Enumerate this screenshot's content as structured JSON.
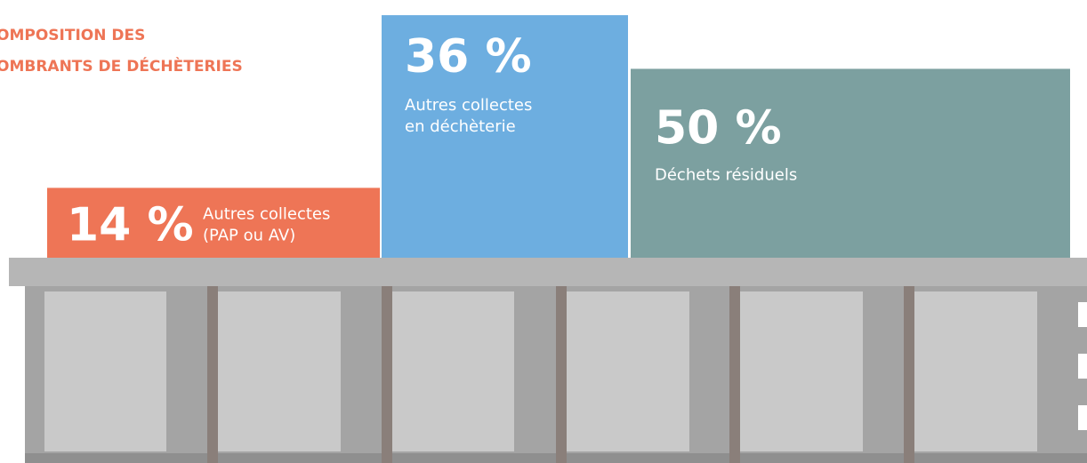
{
  "chart_data": {
    "type": "bar",
    "title": [
      "OMPOSITION DES",
      "OMBRANTS DE DÉCHÈTERIES"
    ],
    "categories": [
      [
        "Autres collectes",
        "(PAP ou AV)"
      ],
      [
        "Autres collectes",
        "en déchèterie"
      ],
      [
        "Déchets résiduels"
      ]
    ],
    "values": [
      14,
      36,
      50
    ],
    "value_labels": [
      "14 %",
      "36 %",
      "50 %"
    ],
    "colors": [
      "#ee7556",
      "#6daee0",
      "#7ca0a0"
    ],
    "title_color": "#ee7556"
  }
}
